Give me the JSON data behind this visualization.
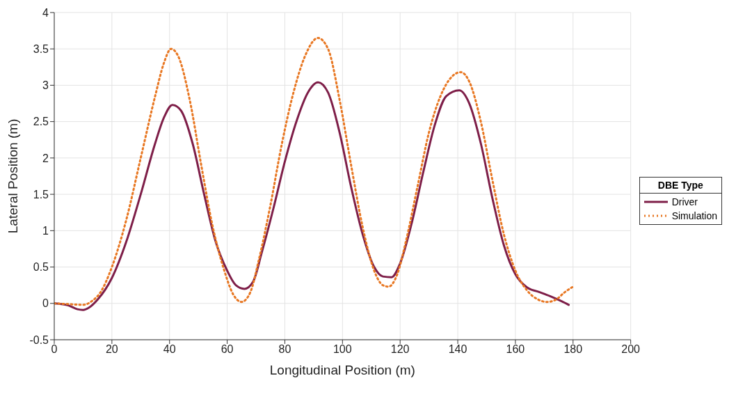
{
  "chart_data": {
    "type": "line",
    "xlabel": "Longitudinal Position (m)",
    "ylabel": "Lateral Position (m)",
    "legend_title": "DBE Type",
    "xlim": [
      0,
      200
    ],
    "xticks": [
      0,
      20,
      40,
      60,
      80,
      100,
      120,
      140,
      160,
      180,
      200
    ],
    "ylim": [
      -0.5,
      4
    ],
    "yticks": [
      -0.5,
      0,
      0.5,
      1,
      1.5,
      2,
      2.5,
      3,
      3.5,
      4
    ],
    "grid": true,
    "legend": "right",
    "series": [
      {
        "name": "Driver",
        "color": "#7e1e48",
        "line_style": "solid",
        "x": [
          0,
          5,
          8,
          10,
          12,
          15,
          20,
          25,
          30,
          35,
          38,
          41,
          44,
          48,
          52,
          56,
          60,
          63,
          66,
          69,
          72,
          76,
          80,
          84,
          88,
          91.5,
          95,
          99,
          103,
          107,
          111,
          114,
          117,
          120,
          124,
          128,
          132,
          136,
          140.5,
          144,
          148,
          152,
          156,
          160,
          164,
          168,
          172,
          176,
          178.5
        ],
        "values": [
          0,
          -0.03,
          -0.08,
          -0.09,
          -0.06,
          0.05,
          0.35,
          0.85,
          1.5,
          2.2,
          2.55,
          2.73,
          2.65,
          2.2,
          1.5,
          0.85,
          0.45,
          0.25,
          0.2,
          0.3,
          0.7,
          1.3,
          1.95,
          2.5,
          2.9,
          3.04,
          2.9,
          2.35,
          1.6,
          0.95,
          0.5,
          0.37,
          0.36,
          0.55,
          1.1,
          1.8,
          2.45,
          2.85,
          2.93,
          2.75,
          2.2,
          1.45,
          0.8,
          0.4,
          0.22,
          0.16,
          0.1,
          0.03,
          -0.02
        ]
      },
      {
        "name": "Simulation",
        "color": "#e87722",
        "line_style": "dotted",
        "x": [
          0,
          5,
          10,
          13,
          16,
          20,
          25,
          30,
          35,
          38,
          40.5,
          43,
          47,
          51,
          55,
          59,
          62,
          65,
          68,
          71,
          75,
          79,
          83,
          87,
          91.5,
          95,
          99,
          103,
          107,
          111,
          114,
          116,
          119,
          122,
          126,
          130,
          134,
          138,
          141,
          144,
          148,
          152,
          156,
          160,
          164,
          168,
          171,
          174,
          177,
          180
        ],
        "values": [
          0,
          -0.01,
          -0.02,
          0.03,
          0.15,
          0.5,
          1.15,
          2.0,
          2.85,
          3.3,
          3.5,
          3.4,
          2.8,
          1.9,
          1.05,
          0.45,
          0.13,
          0.02,
          0.15,
          0.6,
          1.35,
          2.2,
          2.9,
          3.4,
          3.65,
          3.5,
          2.8,
          1.9,
          1.05,
          0.45,
          0.25,
          0.23,
          0.4,
          0.85,
          1.6,
          2.35,
          2.85,
          3.12,
          3.18,
          3.05,
          2.5,
          1.7,
          0.95,
          0.45,
          0.18,
          0.05,
          0.02,
          0.05,
          0.15,
          0.23
        ]
      }
    ]
  }
}
